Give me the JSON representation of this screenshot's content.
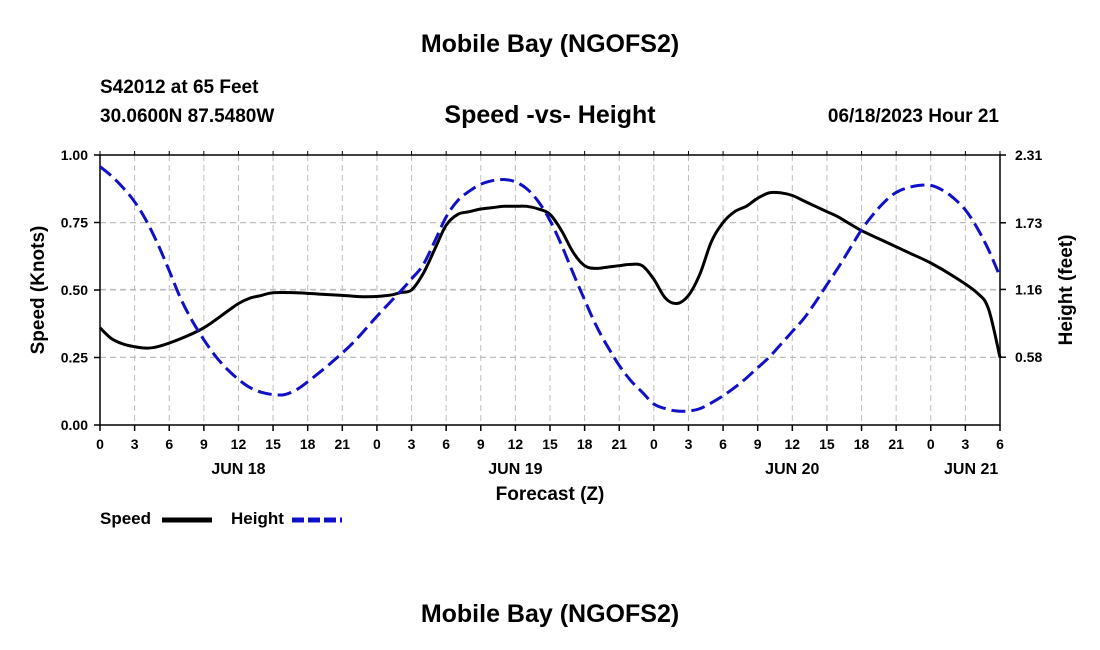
{
  "header": {
    "title": "Mobile Bay (NGOFS2)",
    "station": "S42012 at 65 Feet",
    "coordinates": "30.0600N  87.5480W",
    "subtitle": "Speed -vs- Height",
    "datetime": "06/18/2023 Hour 21"
  },
  "footer": {
    "title": "Mobile Bay (NGOFS2)"
  },
  "legend": {
    "speed_label": "Speed",
    "height_label": "Height"
  },
  "colors": {
    "speed": "#000000",
    "height": "#1010c8",
    "grid": "#bdbdbd"
  },
  "chart_data": {
    "type": "line",
    "xlabel": "Forecast (Z)",
    "ylabel": "Speed (Knots)",
    "y2label": "Height (feet)",
    "x_unit": "hours since 06/18 00Z",
    "xlim": [
      0,
      78
    ],
    "ylim": [
      0,
      1
    ],
    "y2lim": [
      0,
      2.31
    ],
    "x_ticks": [
      0,
      3,
      6,
      9,
      12,
      15,
      18,
      21,
      24,
      27,
      30,
      33,
      36,
      39,
      42,
      45,
      48,
      51,
      54,
      57,
      60,
      63,
      66,
      69,
      72,
      75,
      78
    ],
    "x_tick_labels": [
      "0",
      "3",
      "6",
      "9",
      "12",
      "15",
      "18",
      "21",
      "0",
      "3",
      "6",
      "9",
      "12",
      "15",
      "18",
      "21",
      "0",
      "3",
      "6",
      "9",
      "12",
      "15",
      "18",
      "21",
      "0",
      "3",
      "6"
    ],
    "day_labels": [
      {
        "x": 12,
        "label": "JUN 18"
      },
      {
        "x": 36,
        "label": "JUN 19"
      },
      {
        "x": 60,
        "label": "JUN 20"
      },
      {
        "x": 75.5,
        "label": "JUN 21"
      }
    ],
    "y_ticks": [
      0,
      0.25,
      0.5,
      0.75,
      1.0
    ],
    "y_tick_labels": [
      "0.00",
      "0.25",
      "0.50",
      "0.75",
      "1.00"
    ],
    "y2_ticks": [
      0.58,
      1.16,
      1.73,
      2.31
    ],
    "y2_tick_labels": [
      "0.58",
      "1.16",
      "1.73",
      "2.31"
    ],
    "grid": true,
    "series": [
      {
        "name": "Speed",
        "axis": "left",
        "style": "solid",
        "x": [
          0,
          1,
          2,
          3,
          4,
          5,
          7,
          9,
          11,
          12,
          13,
          14,
          15,
          17,
          19,
          21,
          23,
          25,
          26,
          27,
          28,
          29,
          30,
          31,
          32,
          33,
          34,
          35,
          36,
          37,
          38,
          39,
          40,
          41,
          42,
          43,
          44,
          45,
          46,
          47,
          48,
          49,
          50,
          51,
          52,
          53,
          54,
          55,
          56,
          57,
          58,
          59,
          60,
          61,
          62,
          63,
          64,
          66,
          68,
          70,
          72,
          74,
          76,
          77,
          78
        ],
        "y": [
          0.36,
          0.32,
          0.3,
          0.29,
          0.285,
          0.29,
          0.32,
          0.36,
          0.42,
          0.45,
          0.47,
          0.48,
          0.49,
          0.49,
          0.485,
          0.48,
          0.475,
          0.48,
          0.49,
          0.5,
          0.56,
          0.65,
          0.74,
          0.78,
          0.79,
          0.8,
          0.805,
          0.81,
          0.81,
          0.81,
          0.8,
          0.78,
          0.72,
          0.64,
          0.59,
          0.58,
          0.585,
          0.59,
          0.595,
          0.59,
          0.54,
          0.47,
          0.45,
          0.48,
          0.56,
          0.68,
          0.75,
          0.79,
          0.81,
          0.84,
          0.86,
          0.86,
          0.85,
          0.83,
          0.81,
          0.79,
          0.77,
          0.72,
          0.68,
          0.64,
          0.6,
          0.55,
          0.49,
          0.43,
          0.25
        ]
      },
      {
        "name": "Height",
        "axis": "right",
        "style": "dashed",
        "x": [
          0,
          1,
          2,
          3,
          4,
          5,
          6,
          7,
          8,
          9,
          10,
          11,
          12,
          13,
          14,
          15,
          16,
          17,
          18,
          20,
          22,
          24,
          26,
          27,
          28,
          29,
          30,
          31,
          32,
          33,
          34,
          35,
          36,
          37,
          38,
          39,
          40,
          41,
          42,
          43,
          44,
          45,
          46,
          47,
          48,
          49,
          50,
          51,
          52,
          53,
          54,
          55,
          56,
          57,
          58,
          59,
          60,
          61,
          62,
          63,
          64,
          65,
          66,
          67,
          68,
          69,
          70,
          71,
          72,
          73,
          74,
          75,
          76,
          77,
          78
        ],
        "y": [
          2.21,
          2.13,
          2.03,
          1.91,
          1.75,
          1.55,
          1.32,
          1.08,
          0.89,
          0.73,
          0.59,
          0.48,
          0.39,
          0.32,
          0.28,
          0.26,
          0.26,
          0.3,
          0.37,
          0.53,
          0.71,
          0.93,
          1.14,
          1.25,
          1.37,
          1.57,
          1.78,
          1.92,
          2.0,
          2.06,
          2.09,
          2.1,
          2.08,
          2.02,
          1.91,
          1.75,
          1.54,
          1.3,
          1.07,
          0.85,
          0.67,
          0.51,
          0.38,
          0.28,
          0.18,
          0.14,
          0.12,
          0.12,
          0.14,
          0.19,
          0.25,
          0.32,
          0.4,
          0.49,
          0.58,
          0.69,
          0.8,
          0.91,
          1.05,
          1.2,
          1.35,
          1.51,
          1.67,
          1.8,
          1.91,
          1.99,
          2.03,
          2.05,
          2.05,
          2.01,
          1.94,
          1.84,
          1.69,
          1.5,
          1.27
        ]
      }
    ]
  }
}
